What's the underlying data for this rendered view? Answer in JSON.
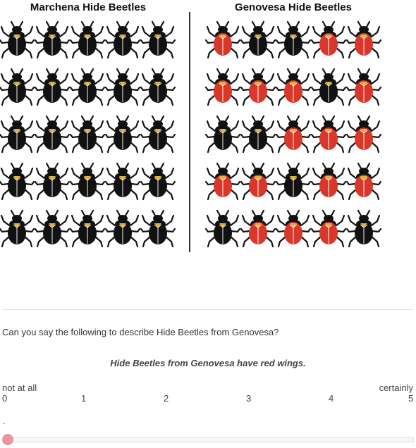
{
  "panels": {
    "left_title": "Marchena Hide Beetles",
    "right_title": "Genovesa Hide Beetles"
  },
  "beetle_grid": {
    "rows": 5,
    "cols": 5,
    "colors": {
      "black": "#111111",
      "red": "#d8372a",
      "yellow": "#e9b434"
    },
    "left_patterns": [
      [
        "black",
        "black",
        "black",
        "black",
        "black"
      ],
      [
        "black",
        "black",
        "black",
        "black",
        "black"
      ],
      [
        "black",
        "black",
        "black",
        "black",
        "black"
      ],
      [
        "black",
        "black",
        "black",
        "black",
        "black"
      ],
      [
        "black",
        "black",
        "black",
        "black",
        "black"
      ]
    ],
    "right_patterns": [
      [
        "red",
        "black",
        "black",
        "red",
        "red"
      ],
      [
        "red",
        "red",
        "red",
        "black",
        "red"
      ],
      [
        "black",
        "black",
        "red",
        "red",
        "red"
      ],
      [
        "red",
        "red",
        "black",
        "red",
        "red"
      ],
      [
        "black",
        "red",
        "red",
        "red",
        "black"
      ]
    ]
  },
  "question": "Can you say the following to describe Hide Beetles from Genovesa?",
  "statement": "Hide Beetles from Genovesa have red wings.",
  "scale": {
    "min_label": "not at all",
    "max_label": "certainly",
    "ticks": [
      "0",
      "1",
      "2",
      "3",
      "4",
      "5"
    ],
    "value_label": ".",
    "value": 0
  }
}
